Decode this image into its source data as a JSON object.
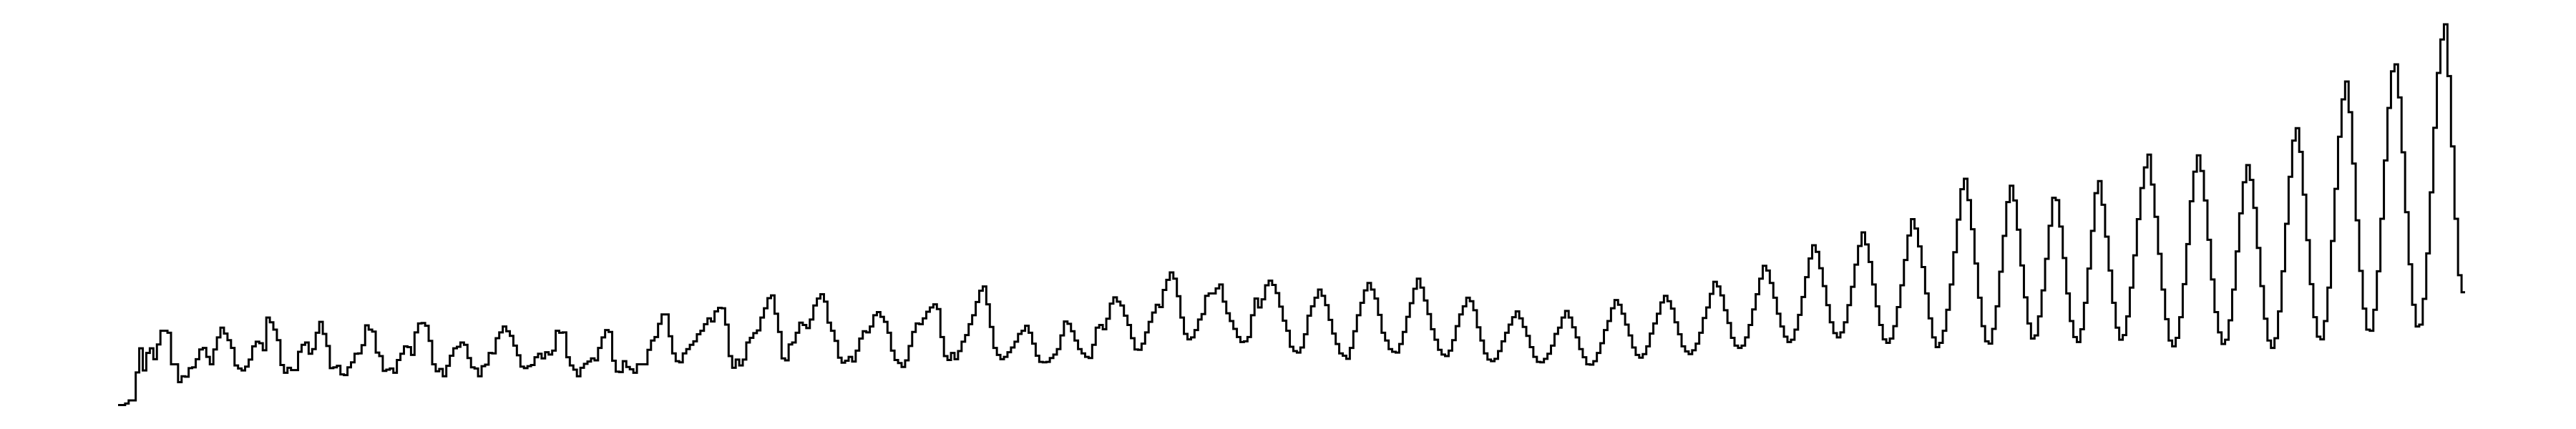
{
  "chart_data": {
    "type": "line",
    "step": "post",
    "title": "",
    "xlabel": "",
    "ylabel": "",
    "axes_visible": false,
    "grid": false,
    "ylim": [
      0,
      100
    ],
    "line_color": "#000000",
    "background": "#ffffff",
    "series": [
      {
        "values": [
          1,
          1,
          1.4,
          2.2,
          2.2,
          9.4,
          15.6,
          9.9,
          14.4,
          15.6,
          12.8,
          16.6,
          20.1,
          20.1,
          19.6,
          11.5,
          11.5,
          6.9,
          8.4,
          8.3,
          10.5,
          10.7,
          12.8,
          15.3,
          15.7,
          13.4,
          11.5,
          15.3,
          18.4,
          20.9,
          19.4,
          17.7,
          15.7,
          11.2,
          10.4,
          9.9,
          10.9,
          12.7,
          16.1,
          17.3,
          16.9,
          15.1,
          23.5,
          22.3,
          20.4,
          17.7,
          11.3,
          9.3,
          10.6,
          10.0,
          10.0,
          14.7,
          16.5,
          17.1,
          14.2,
          15.4,
          19.6,
          22.4,
          19.3,
          16.2,
          10.5,
          10.7,
          11.1,
          8.9,
          8.7,
          10.7,
          12.0,
          14.2,
          14.3,
          16.4,
          21.5,
          20.4,
          19.9,
          14.5,
          13.6,
          9.8,
          10.1,
          10.4,
          9.3,
          12.6,
          14.2,
          16.1,
          15.9,
          13.9,
          19.7,
          22.0,
          22.1,
          21.4,
          17.5,
          11.5,
          9.7,
          10.3,
          8.4,
          11.1,
          13.7,
          15.6,
          16.0,
          17.1,
          16.5,
          13.1,
          10.7,
          10.4,
          8.4,
          11.0,
          11.4,
          14.4,
          14.3,
          18.2,
          19.7,
          21.2,
          20.0,
          18.8,
          16.3,
          13.8,
          10.9,
          10.5,
          11.0,
          11.3,
          13.3,
          14.2,
          13.0,
          14.6,
          14.0,
          15.0,
          20.1,
          19.6,
          19.7,
          13.3,
          11.2,
          10.1,
          8.4,
          10.6,
          11.6,
          12.2,
          13.0,
          12.5,
          15.7,
          18.4,
          20.3,
          19.8,
          12.4,
          9.6,
          9.5,
          12.3,
          10.8,
          10.2,
          9.3,
          11.5,
          11.5,
          11.5,
          15.2,
          17.6,
          18.5,
          21.9,
          24.3,
          24.3,
          18.7,
          14.3,
          12.3,
          12.0,
          14.3,
          15.4,
          16.5,
          17.4,
          19.2,
          20.1,
          21.8,
          23.3,
          22.5,
          25.1,
          26.0,
          25.9,
          21.7,
          13.6,
          10.6,
          12.7,
          11.2,
          12.7,
          17.1,
          18.3,
          19.5,
          20.2,
          23.5,
          25.9,
          28.5,
          29.2,
          24.5,
          19.8,
          13.0,
          12.5,
          16.6,
          17.1,
          19.6,
          22.2,
          21.6,
          20.8,
          23.0,
          26.6,
          28.4,
          29.5,
          27.6,
          22.2,
          20.1,
          17.5,
          13.2,
          11.9,
          12.4,
          13.4,
          12.2,
          15.0,
          18.1,
          20.0,
          19.7,
          21.2,
          24.1,
          24.9,
          23.7,
          22.4,
          19.6,
          15.0,
          12.6,
          11.8,
          10.8,
          12.5,
          16.2,
          19.8,
          22.0,
          21.8,
          23.3,
          25.0,
          26.1,
          26.9,
          25.7,
          18.5,
          13.6,
          12.6,
          14.4,
          12.8,
          14.9,
          17.3,
          19.0,
          21.8,
          24.1,
          27.5,
          30.4,
          31.5,
          26.9,
          21.1,
          15.7,
          13.9,
          12.8,
          13.4,
          14.6,
          15.8,
          17.3,
          19.3,
          20.1,
          21.4,
          19.6,
          16.8,
          13.7,
          12.1,
          12.0,
          12.1,
          13.1,
          14.0,
          15.4,
          18.9,
          22.5,
          21.9,
          20.0,
          17.6,
          15.4,
          14.3,
          13.4,
          13.1,
          16.5,
          20.9,
          21.6,
          20.5,
          23.2,
          27.1,
          28.7,
          27.6,
          26.6,
          24.0,
          21.6,
          18.2,
          15.3,
          15.2,
          16.8,
          19.7,
          22.4,
          24.8,
          26.8,
          26.2,
          30.6,
          33.2,
          35.1,
          33.5,
          29.0,
          23.5,
          19.3,
          17.9,
          18.4,
          20.3,
          23.0,
          24.4,
          29.1,
          29.7,
          29.7,
          31.0,
          32.0,
          27.6,
          24.6,
          22.6,
          20.6,
          18.5,
          17.2,
          17.4,
          18.5,
          24.1,
          28.4,
          26.1,
          28.2,
          31.8,
          33.0,
          31.9,
          29.8,
          26.3,
          22.7,
          20.1,
          16.0,
          14.9,
          14.5,
          15.8,
          19.2,
          24.0,
          26.4,
          28.6,
          30.7,
          29.1,
          26.7,
          22.9,
          19.4,
          16.7,
          14.3,
          13.7,
          12.9,
          15.7,
          20.0,
          24.1,
          27.3,
          30.5,
          32.4,
          30.7,
          28.4,
          24.2,
          19.6,
          17.6,
          15.4,
          14.7,
          14.5,
          16.7,
          19.8,
          23.7,
          27.2,
          30.9,
          33.5,
          31.2,
          27.9,
          24.4,
          20.5,
          17.8,
          15.2,
          14.0,
          13.6,
          15.0,
          17.7,
          21.3,
          24.3,
          26.4,
          28.6,
          27.7,
          25.4,
          21.0,
          17.6,
          14.3,
          12.7,
          12.3,
          12.9,
          14.9,
          17.4,
          19.6,
          21.7,
          23.6,
          25.1,
          23.3,
          21.1,
          18.8,
          15.9,
          13.4,
          12.1,
          12.0,
          12.9,
          14.2,
          16.3,
          19.3,
          20.9,
          23.5,
          25.2,
          23.5,
          21.0,
          18.4,
          15.4,
          13.3,
          11.5,
          11.4,
          12.3,
          14.4,
          16.9,
          20.3,
          22.6,
          25.9,
          28.0,
          26.8,
          24.5,
          21.7,
          18.9,
          15.8,
          13.9,
          13.2,
          14.1,
          16.1,
          19.4,
          22.0,
          24.5,
          27.4,
          29.1,
          27.7,
          25.8,
          22.3,
          19.2,
          16.1,
          14.8,
          14.1,
          15.1,
          16.8,
          19.6,
          23.4,
          26.1,
          29.6,
          32.7,
          31.5,
          29.2,
          25.4,
          22.1,
          18.3,
          16.3,
          15.7,
          16.3,
          18.4,
          21.6,
          25.6,
          29.5,
          33.5,
          36.8,
          35.6,
          32.4,
          28.6,
          24.5,
          21.2,
          18.6,
          17.2,
          17.8,
          20.4,
          24.2,
          28.8,
          33.9,
          38.7,
          42.1,
          40.4,
          36.2,
          31.6,
          26.7,
          22.3,
          19.5,
          18.4,
          19.7,
          22.3,
          26.7,
          31.4,
          37.1,
          41.9,
          45.4,
          42.3,
          37.8,
          32.0,
          26.4,
          21.6,
          17.9,
          17.0,
          18.1,
          21.3,
          26.2,
          31.8,
          38.3,
          44.6,
          48.8,
          46.4,
          41.8,
          36.5,
          29.7,
          23.3,
          18.4,
          15.9,
          17.0,
          20.1,
          25.5,
          32.0,
          40.3,
          48.7,
          56.5,
          59.2,
          53.7,
          46.2,
          37.4,
          28.6,
          21.3,
          17.4,
          16.8,
          20.6,
          26.4,
          35.3,
          44.5,
          53.2,
          57.4,
          53.6,
          46.1,
          36.9,
          28.7,
          22.0,
          18.1,
          18.9,
          23.8,
          30.5,
          38.6,
          47.1,
          54.3,
          53.7,
          46.9,
          38.8,
          29.7,
          22.6,
          18.5,
          17.2,
          20.5,
          27.3,
          36.1,
          45.8,
          55.5,
          58.6,
          52.5,
          44.3,
          35.6,
          27.3,
          20.9,
          17.8,
          19.0,
          23.8,
          31.2,
          39.5,
          48.8,
          56.8,
          62.1,
          65.4,
          57.7,
          49.4,
          39.9,
          30.7,
          23.1,
          17.6,
          16.1,
          18.3,
          23.6,
          32.1,
          42.4,
          53.4,
          61.0,
          65.2,
          61.2,
          53.6,
          43.5,
          33.3,
          24.9,
          19.7,
          16.7,
          17.8,
          22.8,
          30.7,
          40.5,
          50.3,
          58.3,
          62.7,
          58.9,
          51.7,
          41.4,
          31.6,
          23.2,
          17.6,
          15.7,
          18.2,
          25.1,
          35.4,
          47.6,
          59.7,
          69.0,
          72.2,
          66.1,
          55.1,
          43.4,
          32.1,
          23.6,
          18.6,
          17.9,
          22.6,
          31.2,
          43.2,
          56.6,
          70.0,
          79.6,
          84.2,
          76.3,
          63.1,
          48.5,
          35.5,
          25.8,
          20.4,
          20.1,
          25.5,
          35.4,
          48.9,
          63.9,
          77.4,
          86.8,
          88.6,
          80.1,
          66.0,
          50.6,
          37.2,
          26.8,
          21.2,
          21.7,
          28.3,
          40.0,
          55.7,
          72.3,
          86.4,
          95.0,
          98.9,
          85.6,
          67.5,
          48.9,
          34.4,
          30.0
        ]
      }
    ]
  }
}
